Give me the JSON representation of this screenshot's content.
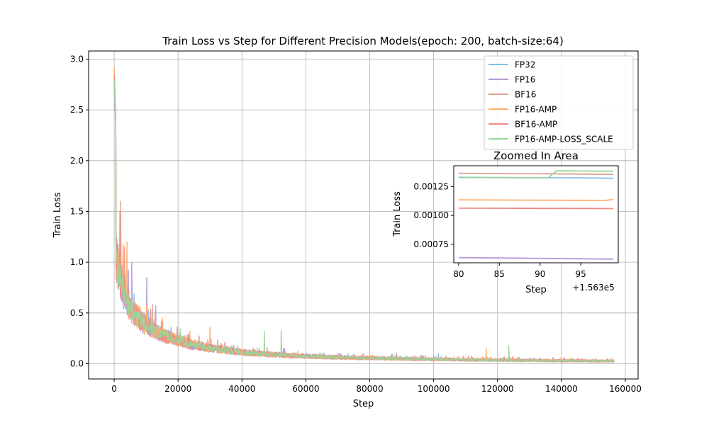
{
  "chart_data": [
    {
      "type": "line",
      "title": "Train Loss vs Step for Different Precision Models(epoch: 200, batch-size:64)",
      "xlabel": "Step",
      "ylabel": "Train Loss",
      "xlim": [
        -8000,
        164000
      ],
      "ylim": [
        -0.15,
        3.08
      ],
      "xticks": [
        0,
        20000,
        40000,
        60000,
        80000,
        100000,
        120000,
        140000,
        160000
      ],
      "xtick_labels": [
        "0",
        "20000",
        "40000",
        "60000",
        "80000",
        "100000",
        "120000",
        "140000",
        "160000"
      ],
      "yticks": [
        0.0,
        0.5,
        1.0,
        1.5,
        2.0,
        2.5,
        3.0
      ],
      "ytick_labels": [
        "0.0",
        "0.5",
        "1.0",
        "1.5",
        "2.0",
        "2.5",
        "3.0"
      ],
      "grid": true,
      "legend": "top-right",
      "x_max": 156399,
      "series": [
        {
          "name": "FP32",
          "color": "#7fbfe6",
          "start": 2.75,
          "noise": 0.16,
          "spikes": [
            [
              145000,
              0.05
            ],
            [
              101500,
              0.1
            ]
          ]
        },
        {
          "name": "FP16",
          "color": "#b49ad6",
          "start": 2.72,
          "noise": 0.18,
          "spikes": [
            [
              5500,
              1.0
            ],
            [
              10200,
              0.85
            ]
          ]
        },
        {
          "name": "BF16",
          "color": "#e0a090",
          "start": 2.9,
          "noise": 0.17,
          "spikes": [
            [
              2000,
              1.6
            ]
          ]
        },
        {
          "name": "FP16-AMP",
          "color": "#ffb070",
          "start": 2.93,
          "noise": 0.18,
          "spikes": [
            [
              4000,
              1.2
            ],
            [
              116500,
              0.15
            ],
            [
              30000,
              0.36
            ]
          ]
        },
        {
          "name": "BF16-AMP",
          "color": "#ee8a82",
          "start": 2.85,
          "noise": 0.16,
          "spikes": [
            [
              3200,
              1.15
            ],
            [
              1800,
              1.5
            ]
          ]
        },
        {
          "name": "FP16-AMP-LOSS_SCALE",
          "color": "#98d69a",
          "start": 2.8,
          "noise": 0.12,
          "spikes": [
            [
              123500,
              0.18
            ],
            [
              47000,
              0.32
            ],
            [
              52300,
              0.33
            ]
          ]
        }
      ]
    },
    {
      "type": "line",
      "title": "Zoomed In Area",
      "xlabel": "Step",
      "ylabel": "Train Loss",
      "offset_label": "+1.563e5",
      "xlim": [
        79.4,
        99.6
      ],
      "ylim": [
        0.00059,
        0.00143
      ],
      "xticks": [
        80,
        85,
        90,
        95
      ],
      "xtick_labels": [
        "80",
        "85",
        "90",
        "95"
      ],
      "yticks": [
        0.00075,
        0.001,
        0.00125
      ],
      "ytick_labels": [
        "0.00075",
        "0.00100",
        "0.00125"
      ],
      "grid": false,
      "series": [
        {
          "name": "FP32",
          "color": "#7fbfe6",
          "x": [
            80,
            85,
            90,
            95,
            99
          ],
          "y": [
            0.00133,
            0.001328,
            0.001326,
            0.001325,
            0.001322
          ]
        },
        {
          "name": "FP16",
          "color": "#b49ad6",
          "x": [
            80,
            85,
            90,
            95,
            99
          ],
          "y": [
            0.000635,
            0.000632,
            0.000628,
            0.000625,
            0.000622
          ]
        },
        {
          "name": "BF16",
          "color": "#e0a090",
          "x": [
            80,
            85,
            90,
            95,
            99
          ],
          "y": [
            0.001365,
            0.001362,
            0.00136,
            0.001358,
            0.001355
          ]
        },
        {
          "name": "FP16-AMP",
          "color": "#ffb070",
          "x": [
            80,
            85,
            90,
            95,
            98,
            99
          ],
          "y": [
            0.001135,
            0.001133,
            0.001132,
            0.001131,
            0.00113,
            0.001138
          ]
        },
        {
          "name": "BF16-AMP",
          "color": "#ee8a82",
          "x": [
            80,
            85,
            90,
            95,
            99
          ],
          "y": [
            0.001063,
            0.001062,
            0.001061,
            0.00106,
            0.001059
          ]
        },
        {
          "name": "FP16-AMP-LOSS_SCALE",
          "color": "#98d69a",
          "x": [
            80,
            85,
            91,
            92,
            95,
            99
          ],
          "y": [
            0.001328,
            0.001327,
            0.001325,
            0.001385,
            0.001384,
            0.001383
          ]
        }
      ]
    }
  ]
}
